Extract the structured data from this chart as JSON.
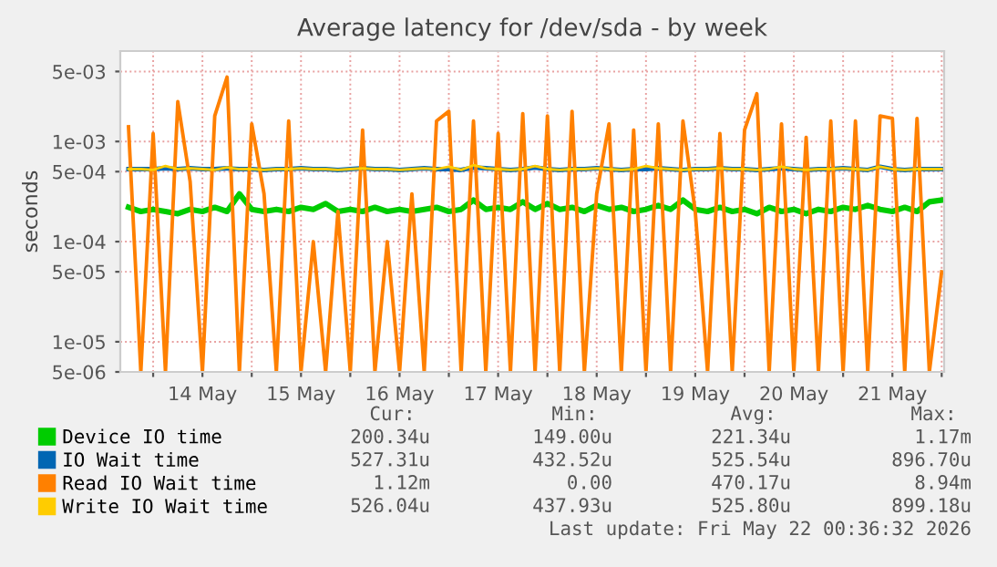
{
  "chart_data": {
    "type": "line",
    "title": "Average latency for /dev/sda - by week",
    "ylabel": "seconds",
    "log": "y",
    "grid": true,
    "legend": "bottom",
    "marker": "none",
    "line_style": "solid",
    "ylim": [
      5e-06,
      0.008
    ],
    "yticks": [
      {
        "value": 5e-06,
        "label": "5e-06"
      },
      {
        "value": 1e-05,
        "label": "1e-05"
      },
      {
        "value": 5e-05,
        "label": "5e-05"
      },
      {
        "value": 0.0001,
        "label": "1e-04"
      },
      {
        "value": 0.0005,
        "label": "5e-04"
      },
      {
        "value": 0.001,
        "label": "1e-03"
      },
      {
        "value": 0.005,
        "label": "5e-03"
      }
    ],
    "xlim": [
      "2026-05-13T16:00",
      "2026-05-22T00:36"
    ],
    "xticks": [
      {
        "value": "2026-05-14T00:00",
        "label": null
      },
      {
        "value": "2026-05-14T12:00",
        "label": "14 May"
      },
      {
        "value": "2026-05-15T00:00",
        "label": null
      },
      {
        "value": "2026-05-15T12:00",
        "label": "15 May"
      },
      {
        "value": "2026-05-16T00:00",
        "label": null
      },
      {
        "value": "2026-05-16T12:00",
        "label": "16 May"
      },
      {
        "value": "2026-05-17T00:00",
        "label": null
      },
      {
        "value": "2026-05-17T12:00",
        "label": "17 May"
      },
      {
        "value": "2026-05-18T00:00",
        "label": null
      },
      {
        "value": "2026-05-18T12:00",
        "label": "18 May"
      },
      {
        "value": "2026-05-19T00:00",
        "label": null
      },
      {
        "value": "2026-05-19T12:00",
        "label": "19 May"
      },
      {
        "value": "2026-05-20T00:00",
        "label": null
      },
      {
        "value": "2026-05-20T12:00",
        "label": "20 May"
      },
      {
        "value": "2026-05-21T00:00",
        "label": null
      },
      {
        "value": "2026-05-21T12:00",
        "label": "21 May"
      },
      {
        "value": "2026-05-22T00:00",
        "label": null
      }
    ],
    "x": [
      "2026-05-13T18:00",
      "2026-05-13T21:00",
      "2026-05-14T00:00",
      "2026-05-14T03:00",
      "2026-05-14T06:00",
      "2026-05-14T09:00",
      "2026-05-14T12:00",
      "2026-05-14T15:00",
      "2026-05-14T18:00",
      "2026-05-14T21:00",
      "2026-05-15T00:00",
      "2026-05-15T03:00",
      "2026-05-15T06:00",
      "2026-05-15T09:00",
      "2026-05-15T12:00",
      "2026-05-15T15:00",
      "2026-05-15T18:00",
      "2026-05-15T21:00",
      "2026-05-16T00:00",
      "2026-05-16T03:00",
      "2026-05-16T06:00",
      "2026-05-16T09:00",
      "2026-05-16T12:00",
      "2026-05-16T15:00",
      "2026-05-16T18:00",
      "2026-05-16T21:00",
      "2026-05-17T00:00",
      "2026-05-17T03:00",
      "2026-05-17T06:00",
      "2026-05-17T09:00",
      "2026-05-17T12:00",
      "2026-05-17T15:00",
      "2026-05-17T18:00",
      "2026-05-17T21:00",
      "2026-05-18T00:00",
      "2026-05-18T03:00",
      "2026-05-18T06:00",
      "2026-05-18T09:00",
      "2026-05-18T12:00",
      "2026-05-18T15:00",
      "2026-05-18T18:00",
      "2026-05-18T21:00",
      "2026-05-19T00:00",
      "2026-05-19T03:00",
      "2026-05-19T06:00",
      "2026-05-19T09:00",
      "2026-05-19T12:00",
      "2026-05-19T15:00",
      "2026-05-19T18:00",
      "2026-05-19T21:00",
      "2026-05-20T00:00",
      "2026-05-20T03:00",
      "2026-05-20T06:00",
      "2026-05-20T09:00",
      "2026-05-20T12:00",
      "2026-05-20T15:00",
      "2026-05-20T18:00",
      "2026-05-20T21:00",
      "2026-05-21T00:00",
      "2026-05-21T03:00",
      "2026-05-21T06:00",
      "2026-05-21T09:00",
      "2026-05-21T12:00",
      "2026-05-21T15:00",
      "2026-05-21T18:00",
      "2026-05-21T21:00",
      "2026-05-22T00:00"
    ],
    "series": [
      {
        "name": "Device IO time",
        "color": "#00cc00",
        "values": [
          0.00022,
          0.0002,
          0.00021,
          0.0002,
          0.00019,
          0.00021,
          0.0002,
          0.00022,
          0.0002,
          0.0003,
          0.00021,
          0.0002,
          0.00021,
          0.0002,
          0.00022,
          0.00021,
          0.00024,
          0.0002,
          0.00021,
          0.0002,
          0.00022,
          0.0002,
          0.00021,
          0.0002,
          0.00021,
          0.00022,
          0.0002,
          0.00021,
          0.00026,
          0.00021,
          0.00022,
          0.00021,
          0.00025,
          0.00021,
          0.00024,
          0.00021,
          0.00022,
          0.0002,
          0.00023,
          0.00021,
          0.00022,
          0.0002,
          0.00021,
          0.00023,
          0.00021,
          0.00026,
          0.00021,
          0.0002,
          0.00022,
          0.0002,
          0.00021,
          0.00019,
          0.00022,
          0.0002,
          0.00021,
          0.00019,
          0.00021,
          0.0002,
          0.00022,
          0.00021,
          0.00023,
          0.00021,
          0.0002,
          0.00022,
          0.0002,
          0.00025,
          0.00026
        ]
      },
      {
        "name": "IO Wait time",
        "color": "#0066b3",
        "values": [
          0.00053,
          0.00053,
          0.00053,
          0.00054,
          0.00053,
          0.00054,
          0.00053,
          0.00053,
          0.00054,
          0.00053,
          0.00053,
          0.00052,
          0.00053,
          0.00053,
          0.00054,
          0.00053,
          0.00053,
          0.00052,
          0.00053,
          0.00054,
          0.00053,
          0.00053,
          0.00052,
          0.00053,
          0.00054,
          0.00053,
          0.00053,
          0.00052,
          0.00055,
          0.00054,
          0.00053,
          0.00052,
          0.00053,
          0.00055,
          0.00053,
          0.00052,
          0.00053,
          0.00053,
          0.00054,
          0.00053,
          0.00052,
          0.00053,
          0.00053,
          0.00054,
          0.00053,
          0.00052,
          0.00053,
          0.00053,
          0.00054,
          0.00053,
          0.00053,
          0.00052,
          0.00053,
          0.00054,
          0.00053,
          0.00052,
          0.00053,
          0.00053,
          0.00054,
          0.00053,
          0.00052,
          0.00056,
          0.00053,
          0.00052,
          0.00053,
          0.00053,
          0.00053
        ]
      },
      {
        "name": "Read IO Wait time",
        "color": "#ff8000",
        "values": [
          0.0014,
          5e-06,
          0.0012,
          5e-06,
          0.0025,
          0.0004,
          5e-06,
          0.0018,
          0.0044,
          5e-06,
          0.0015,
          0.0003,
          5e-06,
          0.0016,
          5e-06,
          0.0001,
          5e-06,
          0.0002,
          5e-06,
          0.0013,
          5e-06,
          0.0001,
          5e-06,
          0.0003,
          5e-06,
          0.0016,
          0.002,
          5e-06,
          0.0016,
          5e-06,
          0.0012,
          5e-06,
          0.0019,
          5e-06,
          0.0018,
          5e-06,
          0.002,
          5e-06,
          0.0003,
          0.0015,
          5e-06,
          0.0013,
          5e-06,
          0.0015,
          5e-06,
          0.0016,
          0.0002,
          5e-06,
          0.0012,
          5e-06,
          0.0013,
          0.003,
          5e-06,
          0.0015,
          5e-06,
          0.0011,
          5e-06,
          0.0016,
          5e-06,
          0.0016,
          5e-06,
          0.0018,
          0.0017,
          5e-06,
          0.0017,
          5e-06,
          5e-05
        ]
      },
      {
        "name": "Write IO Wait time",
        "color": "#ffcc00",
        "values": [
          0.00053,
          0.00053,
          0.00052,
          0.00057,
          0.00053,
          0.00054,
          0.00053,
          0.00052,
          0.00055,
          0.00053,
          0.00053,
          0.00052,
          0.00053,
          0.00053,
          0.00054,
          0.00053,
          0.00053,
          0.00052,
          0.00053,
          0.00054,
          0.00053,
          0.00053,
          0.00052,
          0.00053,
          0.00054,
          0.00053,
          0.00056,
          0.00052,
          0.00058,
          0.00054,
          0.00053,
          0.00052,
          0.00053,
          0.00057,
          0.00053,
          0.00052,
          0.00053,
          0.00053,
          0.00054,
          0.00053,
          0.00052,
          0.00053,
          0.00057,
          0.00054,
          0.00053,
          0.00052,
          0.00053,
          0.00053,
          0.00054,
          0.00053,
          0.00053,
          0.00052,
          0.00053,
          0.00056,
          0.00053,
          0.00052,
          0.00053,
          0.00053,
          0.00054,
          0.00053,
          0.00052,
          0.00056,
          0.00053,
          0.00052,
          0.00053,
          0.00053,
          0.00053
        ]
      }
    ],
    "annotations": [
      "Cur:",
      "Min:",
      "Avg:",
      "Max:",
      "200.34u",
      "149.00u",
      "221.34u",
      "1.17m",
      "527.31u",
      "432.52u",
      "525.54u",
      "896.70u",
      "1.12m",
      "0.00",
      "470.17u",
      "8.94m",
      "526.04u",
      "437.93u",
      "525.80u",
      "899.18u",
      "Last update: Fri May 22 00:36:32 2026"
    ]
  }
}
